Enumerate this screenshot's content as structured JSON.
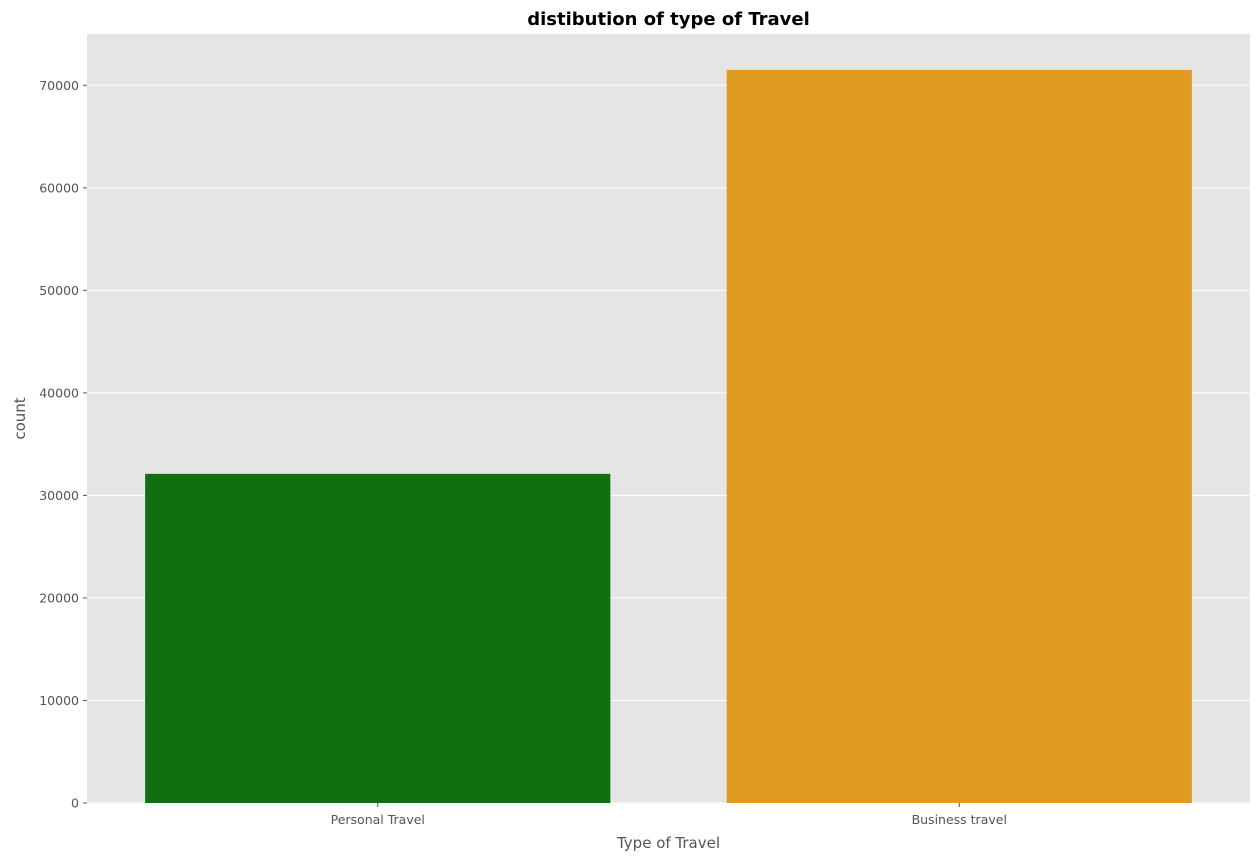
{
  "chart_data": {
    "type": "bar",
    "title": "distibution of type of Travel",
    "xlabel": "Type of Travel",
    "ylabel": "count",
    "categories": [
      "Personal Travel",
      "Business travel"
    ],
    "values": [
      32100,
      71500
    ],
    "colors": [
      "#107010",
      "#e09b20"
    ],
    "ylim": [
      0,
      75000
    ],
    "yticks": [
      0,
      10000,
      20000,
      30000,
      40000,
      50000,
      60000,
      70000
    ],
    "ytick_labels": [
      "0",
      "10000",
      "20000",
      "30000",
      "40000",
      "50000",
      "60000",
      "70000"
    ],
    "grid": true,
    "background": "#e5e5e5",
    "gridline_color": "#ffffff"
  }
}
